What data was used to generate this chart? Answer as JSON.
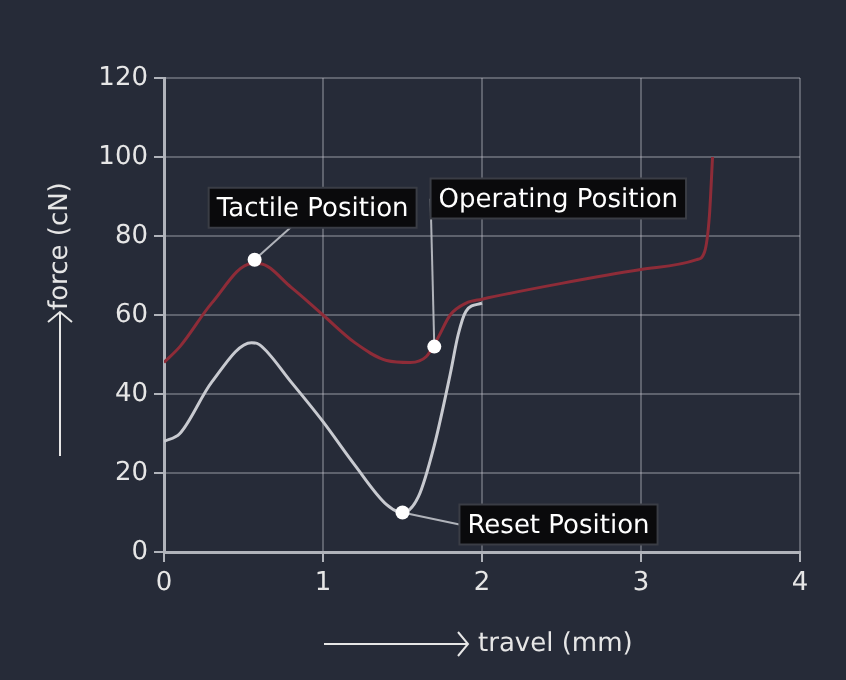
{
  "chart_data": {
    "type": "line",
    "xlabel": "travel (mm)",
    "ylabel": "force (cN)",
    "xlim": [
      0,
      4
    ],
    "xticks": [
      0,
      1,
      2,
      3,
      4
    ],
    "ylim": [
      0,
      120
    ],
    "yticks": [
      0,
      20,
      40,
      60,
      80,
      100,
      120
    ],
    "grid": true,
    "legend": false,
    "marker": "none",
    "line_style": "solid",
    "series": [
      {
        "color": "#8e2c38",
        "x": [
          0,
          0.1,
          0.3,
          0.55,
          0.6,
          0.8,
          1,
          1.2,
          1.4,
          1.55,
          1.65,
          1.72,
          1.8,
          1.9,
          2,
          2.5,
          3,
          3.35,
          3.4,
          3.43,
          3.45
        ],
        "values": [
          48,
          52,
          63,
          73,
          73,
          67,
          60,
          53,
          48.5,
          48,
          49.5,
          54,
          60,
          63,
          64,
          68,
          71.5,
          74,
          76,
          85,
          100
        ]
      },
      {
        "color": "#c8cad0",
        "x": [
          0,
          0.1,
          0.3,
          0.55,
          0.6,
          0.8,
          1,
          1.2,
          1.4,
          1.5,
          1.6,
          1.7,
          1.8,
          1.85,
          1.9,
          2
        ],
        "values": [
          28,
          30,
          43,
          53,
          52.5,
          43,
          33,
          22,
          12,
          10,
          14,
          27,
          45,
          55,
          61,
          63
        ]
      }
    ],
    "annotations": [
      {
        "text": "Tactile Position",
        "x": 0.57,
        "y": 74
      },
      {
        "text": "Operating Position",
        "x": 1.7,
        "y": 52
      },
      {
        "text": "Reset Position",
        "x": 1.5,
        "y": 10
      }
    ]
  }
}
